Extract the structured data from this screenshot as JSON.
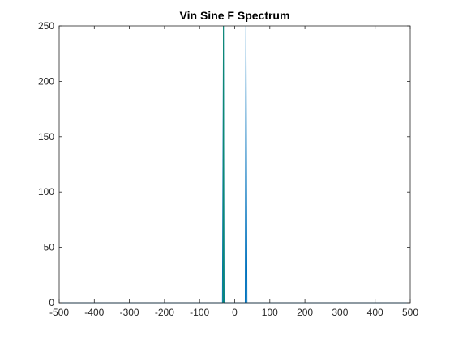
{
  "chart_data": {
    "type": "line",
    "title": "Vin Sine F Spectrum",
    "xlabel": "",
    "ylabel": "",
    "xlim": [
      -500,
      500
    ],
    "ylim": [
      0,
      250
    ],
    "xticks": [
      -500,
      -400,
      -300,
      -200,
      -100,
      0,
      100,
      200,
      300,
      400,
      500
    ],
    "yticks": [
      0,
      50,
      100,
      150,
      200,
      250
    ],
    "grid": false,
    "series": [
      {
        "color": "#0072BD",
        "x": [
          -500,
          -35,
          -32,
          -30,
          30,
          32,
          35,
          500
        ],
        "y": [
          0,
          0,
          250,
          0,
          0,
          250,
          0,
          0
        ]
      },
      {
        "color": "#0E8A6E",
        "x": [
          -33,
          -32,
          -31
        ],
        "y": [
          0,
          250,
          0
        ]
      }
    ]
  }
}
